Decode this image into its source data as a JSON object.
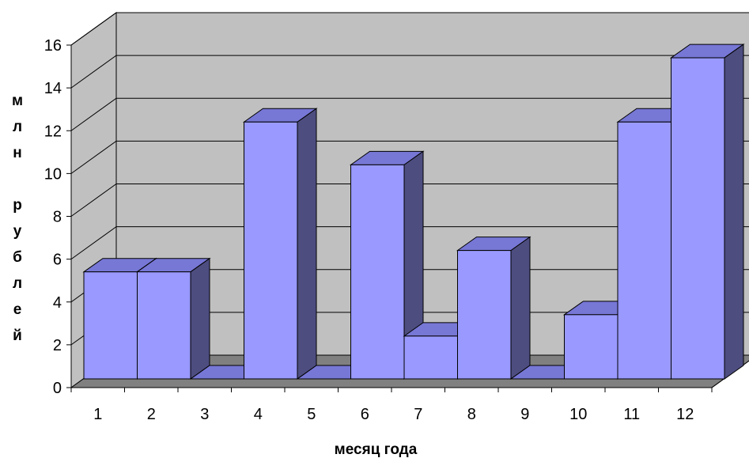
{
  "chart_data": {
    "type": "bar",
    "style": "3d-column",
    "categories": [
      "1",
      "2",
      "3",
      "4",
      "5",
      "6",
      "7",
      "8",
      "9",
      "10",
      "11",
      "12"
    ],
    "values": [
      5,
      5,
      0,
      12,
      0,
      10,
      2,
      6,
      0,
      3,
      12,
      15
    ],
    "title": "",
    "xlabel": "месяц года",
    "ylabel": "млн рублей",
    "ylabel_chars": [
      "м",
      "л",
      "н",
      "",
      "р",
      "у",
      "б",
      "л",
      "е",
      "й"
    ],
    "ylim": [
      0,
      16
    ],
    "yticks": [
      "0",
      "2",
      "4",
      "6",
      "8",
      "10",
      "12",
      "14",
      "16"
    ],
    "grid": true,
    "legend": "none",
    "colors": {
      "bar_front": "#9999ff",
      "bar_side": "#4d4d80",
      "bar_top": "#7777d6",
      "back_wall": "#c0c0c0",
      "floor": "#808080",
      "edge": "#000000"
    }
  }
}
